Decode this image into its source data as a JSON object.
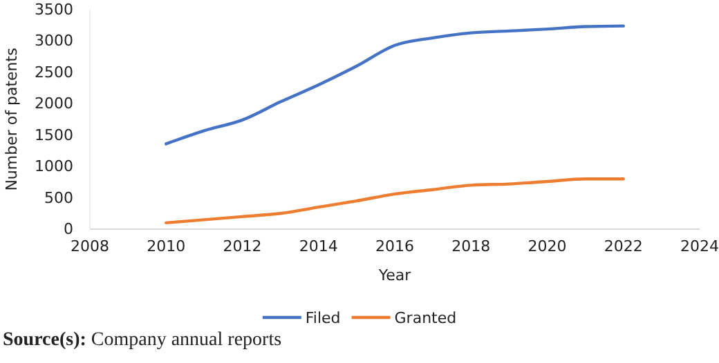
{
  "chart_data": {
    "type": "line",
    "xlabel": "Year",
    "ylabel": "Number of patents",
    "x": [
      2010,
      2011,
      2012,
      2013,
      2014,
      2015,
      2016,
      2017,
      2018,
      2019,
      2020,
      2021,
      2022
    ],
    "series": [
      {
        "name": "Filed",
        "color": "#4472c4",
        "values": [
          1360,
          1570,
          1740,
          2030,
          2300,
          2600,
          2930,
          3050,
          3130,
          3160,
          3190,
          3230,
          3240
        ]
      },
      {
        "name": "Granted",
        "color": "#ed7d31",
        "values": [
          100,
          150,
          200,
          250,
          350,
          450,
          560,
          630,
          700,
          720,
          760,
          800,
          800
        ]
      }
    ],
    "xlim": [
      2008,
      2024
    ],
    "xticks": [
      2008,
      2010,
      2012,
      2014,
      2016,
      2018,
      2020,
      2022,
      2024
    ],
    "ylim": [
      0,
      3500
    ],
    "yticks": [
      0,
      500,
      1000,
      1500,
      2000,
      2500,
      3000,
      3500
    ],
    "grid": false,
    "legend": "bottom",
    "marker": "none",
    "line_style": "solid",
    "annotations": [
      "Source(s): Company annual reports"
    ]
  }
}
